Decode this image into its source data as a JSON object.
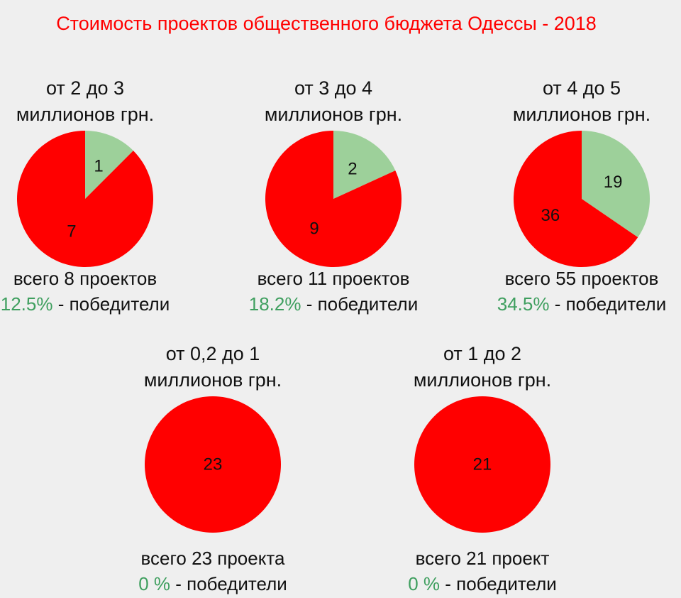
{
  "title": "Стоимость проектов общественного бюджета Одессы - 2018",
  "colors": {
    "winners": "#9dd09a",
    "losers": "#ff0000",
    "percent_text": "#3f9f5f",
    "title": "#ff0000"
  },
  "winners_suffix": " - победители",
  "chart_data": [
    {
      "type": "pie",
      "range_line1": "от 2 до 3",
      "range_line2": "миллионов грн.",
      "slices": [
        {
          "category": "winners",
          "value": 1
        },
        {
          "category": "losers",
          "value": 7
        }
      ],
      "total_text": "всего 8 проектов",
      "percent_text": "12.5%"
    },
    {
      "type": "pie",
      "range_line1": "от 3 до 4",
      "range_line2": "миллионов грн.",
      "slices": [
        {
          "category": "winners",
          "value": 2
        },
        {
          "category": "losers",
          "value": 9
        }
      ],
      "total_text": "всего 11 проектов",
      "percent_text": "18.2%"
    },
    {
      "type": "pie",
      "range_line1": "от 4 до 5",
      "range_line2": "миллионов грн.",
      "slices": [
        {
          "category": "winners",
          "value": 19
        },
        {
          "category": "losers",
          "value": 36
        }
      ],
      "total_text": "всего 55 проектов",
      "percent_text": "34.5%"
    },
    {
      "type": "pie",
      "range_line1": "от 0,2 до 1",
      "range_line2": "миллионов грн.",
      "slices": [
        {
          "category": "winners",
          "value": 0
        },
        {
          "category": "losers",
          "value": 23
        }
      ],
      "total_text": "всего 23 проекта",
      "percent_text": "0 %"
    },
    {
      "type": "pie",
      "range_line1": "от 1 до 2",
      "range_line2": "миллионов грн.",
      "slices": [
        {
          "category": "winners",
          "value": 0
        },
        {
          "category": "losers",
          "value": 21
        }
      ],
      "total_text": "всего 21 проект",
      "percent_text": "0 %"
    }
  ]
}
